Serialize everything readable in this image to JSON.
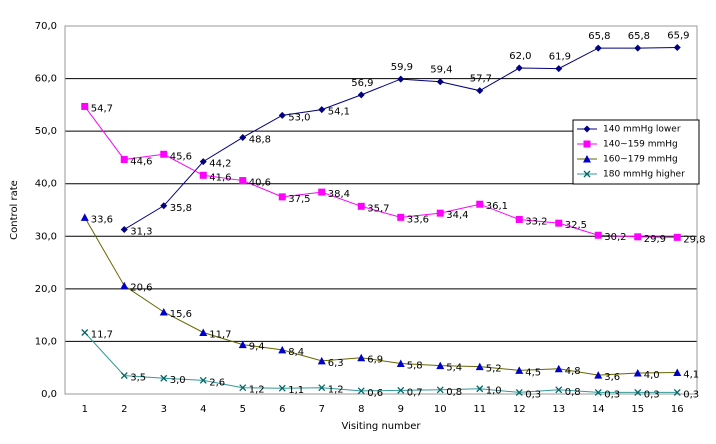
{
  "chart_data": {
    "type": "line",
    "y_label": "Control rate",
    "x_label": "Visiting number",
    "categories": [
      "1",
      "2",
      "3",
      "4",
      "5",
      "6",
      "7",
      "8",
      "9",
      "10",
      "11",
      "12",
      "13",
      "14",
      "15",
      "16"
    ],
    "series": [
      {
        "name": "140 mmHg lower",
        "color": "#000080",
        "line_color": "#000080",
        "marker": "diamond",
        "values": [
          null,
          31.3,
          35.8,
          44.2,
          48.8,
          53.0,
          54.1,
          56.9,
          59.9,
          59.4,
          57.7,
          62.0,
          61.9,
          65.8,
          65.8,
          65.9
        ],
        "value_labels": [
          null,
          "31,3",
          "35,8",
          "44,2",
          "48,8",
          "53,0",
          "54,1",
          "56,9",
          "59,9",
          "59,4",
          "57,7",
          "62,0",
          "61,9",
          "65,8",
          "65,8",
          "65,9"
        ]
      },
      {
        "name": "140~159 mmHg",
        "color": "#ff00ff",
        "line_color": "#ff00ff",
        "marker": "square",
        "values": [
          54.7,
          44.6,
          45.6,
          41.6,
          40.6,
          37.5,
          38.4,
          35.7,
          33.6,
          34.4,
          36.1,
          33.2,
          32.5,
          30.2,
          29.9,
          29.8
        ],
        "value_labels": [
          "54,7",
          "44,6",
          "45,6",
          "41,6",
          "40,6",
          "37,5",
          "38,4",
          "35,7",
          "33,6",
          "34,4",
          "36,1",
          "33,2",
          "32,5",
          "30,2",
          "29,9",
          "29,8"
        ]
      },
      {
        "name": "160~179 mmHg",
        "color": "#0000cc",
        "line_color": "#666600",
        "marker": "triangle",
        "values": [
          33.6,
          20.6,
          15.6,
          11.7,
          9.4,
          8.4,
          6.3,
          6.9,
          5.8,
          5.4,
          5.2,
          4.5,
          4.8,
          3.6,
          4.0,
          4.1
        ],
        "value_labels": [
          "33,6",
          "20,6",
          "15,6",
          "11,7",
          "9,4",
          "8,4",
          "6,3",
          "6,9",
          "5,8",
          "5,4",
          "5,2",
          "4,5",
          "4,8",
          "3,6",
          "4,0",
          "4,1"
        ]
      },
      {
        "name": "180 mmHg higher",
        "color": "#006666",
        "line_color": "#339999",
        "marker": "x",
        "values": [
          11.7,
          3.5,
          3.0,
          2.6,
          1.2,
          1.1,
          1.2,
          0.6,
          0.7,
          0.8,
          1.0,
          0.3,
          0.8,
          0.3,
          0.3,
          0.3
        ],
        "value_labels": [
          "11,7",
          "3,5",
          "3,0",
          "2,6",
          "1,2",
          "1,1",
          "1,2",
          "0,6",
          "0,7",
          "0,8",
          "1,0",
          "0,3",
          "0,8",
          "0,3",
          "0,3",
          "0,3"
        ]
      }
    ],
    "ylim": [
      0,
      70
    ],
    "yticks": [
      {
        "value": 0,
        "label": "0,0"
      },
      {
        "value": 10,
        "label": "10,0"
      },
      {
        "value": 20,
        "label": "20,0"
      },
      {
        "value": 30,
        "label": "30,0"
      },
      {
        "value": 40,
        "label": "40,0"
      },
      {
        "value": 50,
        "label": "50,0"
      },
      {
        "value": 60,
        "label": "60,0"
      },
      {
        "value": 70,
        "label": "70,0"
      }
    ],
    "grid": true,
    "legend": "right"
  }
}
